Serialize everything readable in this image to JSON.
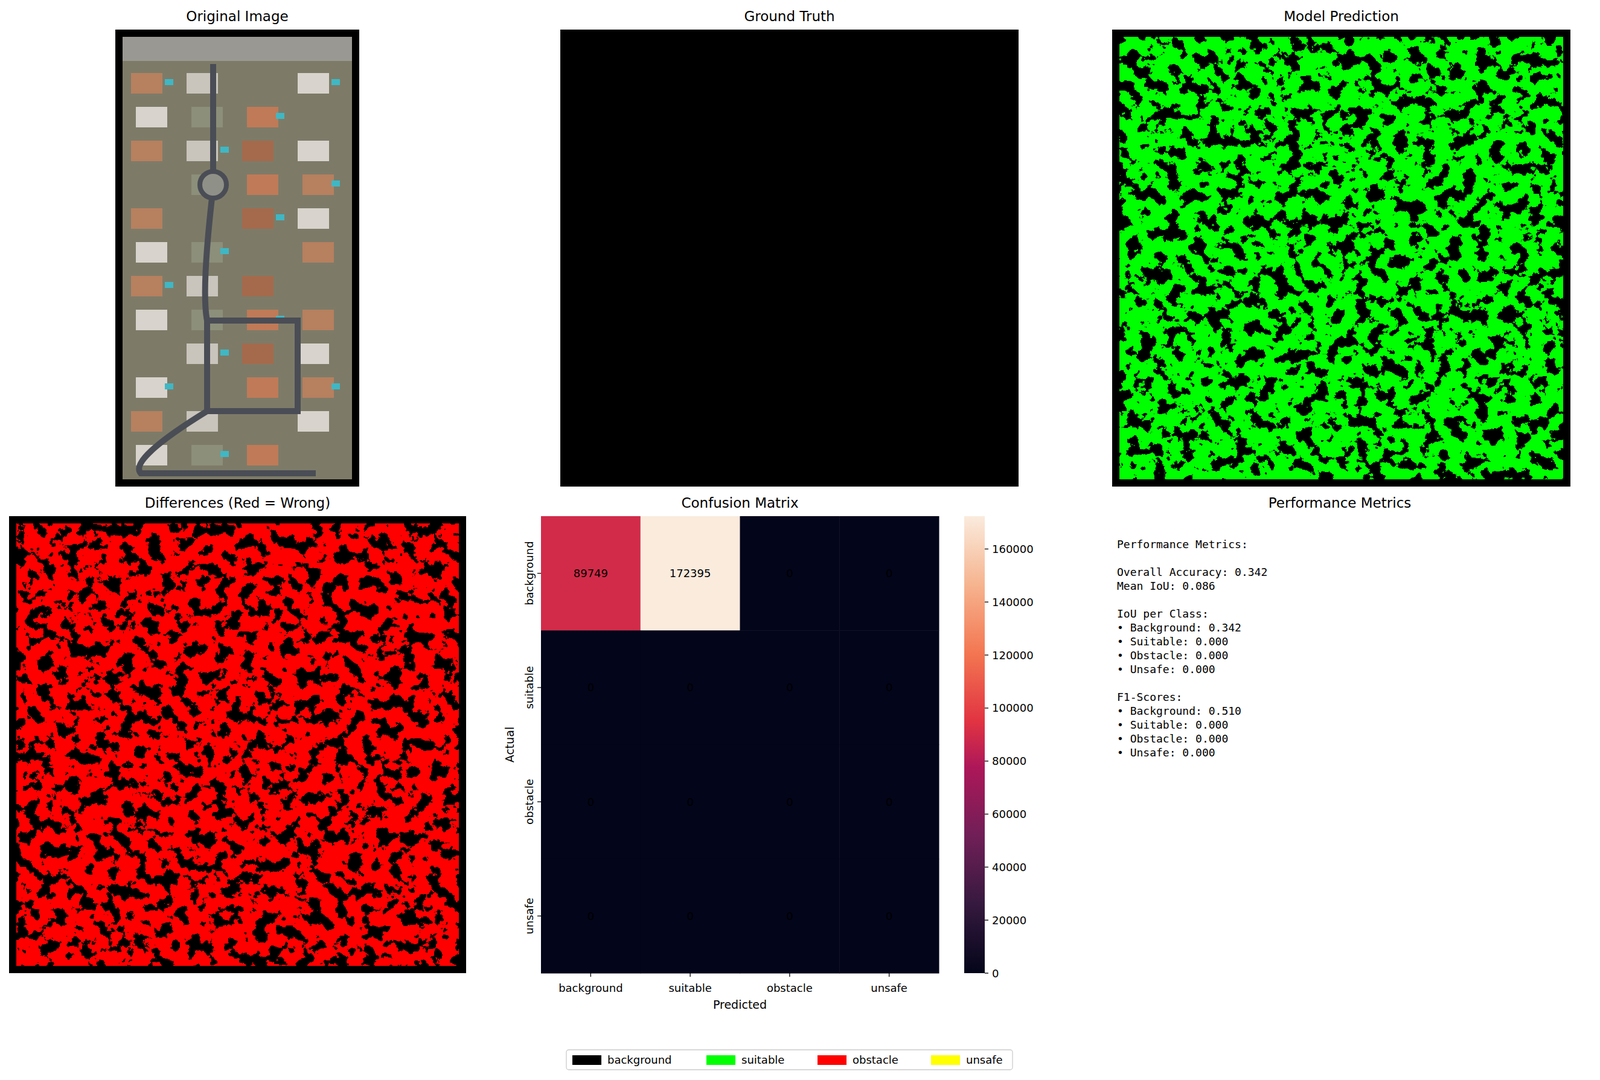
{
  "chart_data": [
    {
      "type": "image",
      "title": "Original Image"
    },
    {
      "type": "image",
      "title": "Ground Truth"
    },
    {
      "type": "image",
      "title": "Model Prediction"
    },
    {
      "type": "image",
      "title": "Differences (Red = Wrong)"
    },
    {
      "type": "heatmap",
      "title": "Confusion Matrix",
      "x_label": "Predicted",
      "y_label": "Actual",
      "x_categories": [
        "background",
        "suitable",
        "obstacle",
        "unsafe"
      ],
      "y_categories": [
        "background",
        "suitable",
        "obstacle",
        "unsafe"
      ],
      "cells": [
        [
          89749,
          172395,
          0,
          0
        ],
        [
          0,
          0,
          0,
          0
        ],
        [
          0,
          0,
          0,
          0
        ],
        [
          0,
          0,
          0,
          0
        ]
      ],
      "data_labels": true,
      "colorbar_range": [
        0,
        172395
      ],
      "colorbar_ticks": [
        0,
        20000,
        40000,
        60000,
        80000,
        100000,
        120000,
        140000,
        160000
      ]
    },
    {
      "type": "text",
      "title": "Performance Metrics",
      "sections": [
        [
          "Performance Metrics:"
        ],
        [
          "Overall Accuracy: 0.342",
          "Mean IoU: 0.086"
        ],
        [
          "IoU per Class:",
          "• Background: 0.342",
          "• Suitable: 0.000",
          "• Obstacle: 0.000",
          "• Unsafe: 0.000"
        ],
        [
          "F1-Scores:",
          "• Background: 0.510",
          "• Suitable: 0.000",
          "• Obstacle: 0.000",
          "• Unsafe: 0.000"
        ]
      ]
    }
  ],
  "legend_entries": [
    {
      "name": "background",
      "color": "#000000"
    },
    {
      "name": "suitable",
      "color": "#00ff00"
    },
    {
      "name": "obstacle",
      "color": "#ff0000"
    },
    {
      "name": "unsafe",
      "color": "#ffff00"
    }
  ]
}
